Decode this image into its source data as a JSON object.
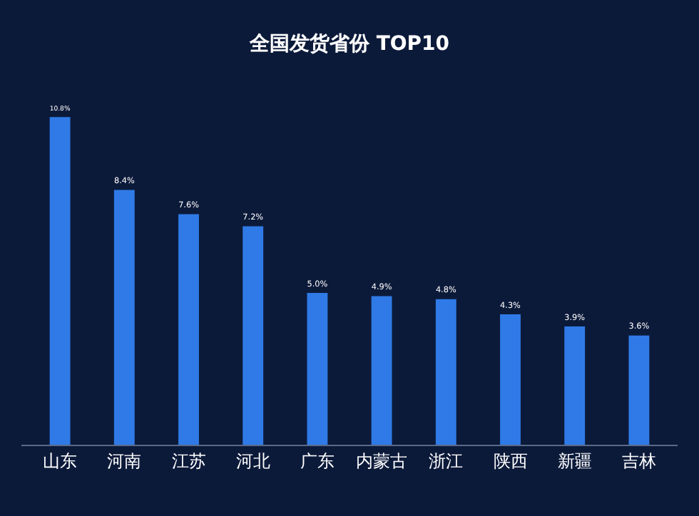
{
  "chart_data": {
    "type": "bar",
    "title": "全国发货省份 TOP10",
    "categories": [
      "山东",
      "河南",
      "江苏",
      "河北",
      "广东",
      "内蒙古",
      "浙江",
      "陕西",
      "新疆",
      "吉林"
    ],
    "values": [
      10.8,
      8.4,
      7.6,
      7.2,
      5.0,
      4.9,
      4.8,
      4.3,
      3.9,
      3.6
    ],
    "value_labels": [
      "10.8%",
      "8.4%",
      "7.6%",
      "7.2%",
      "5.0%",
      "4.9%",
      "4.8%",
      "4.3%",
      "3.9%",
      "3.6%"
    ],
    "color": "#2f7ae6",
    "tick_labels": "x",
    "grid": false,
    "legend": false
  }
}
